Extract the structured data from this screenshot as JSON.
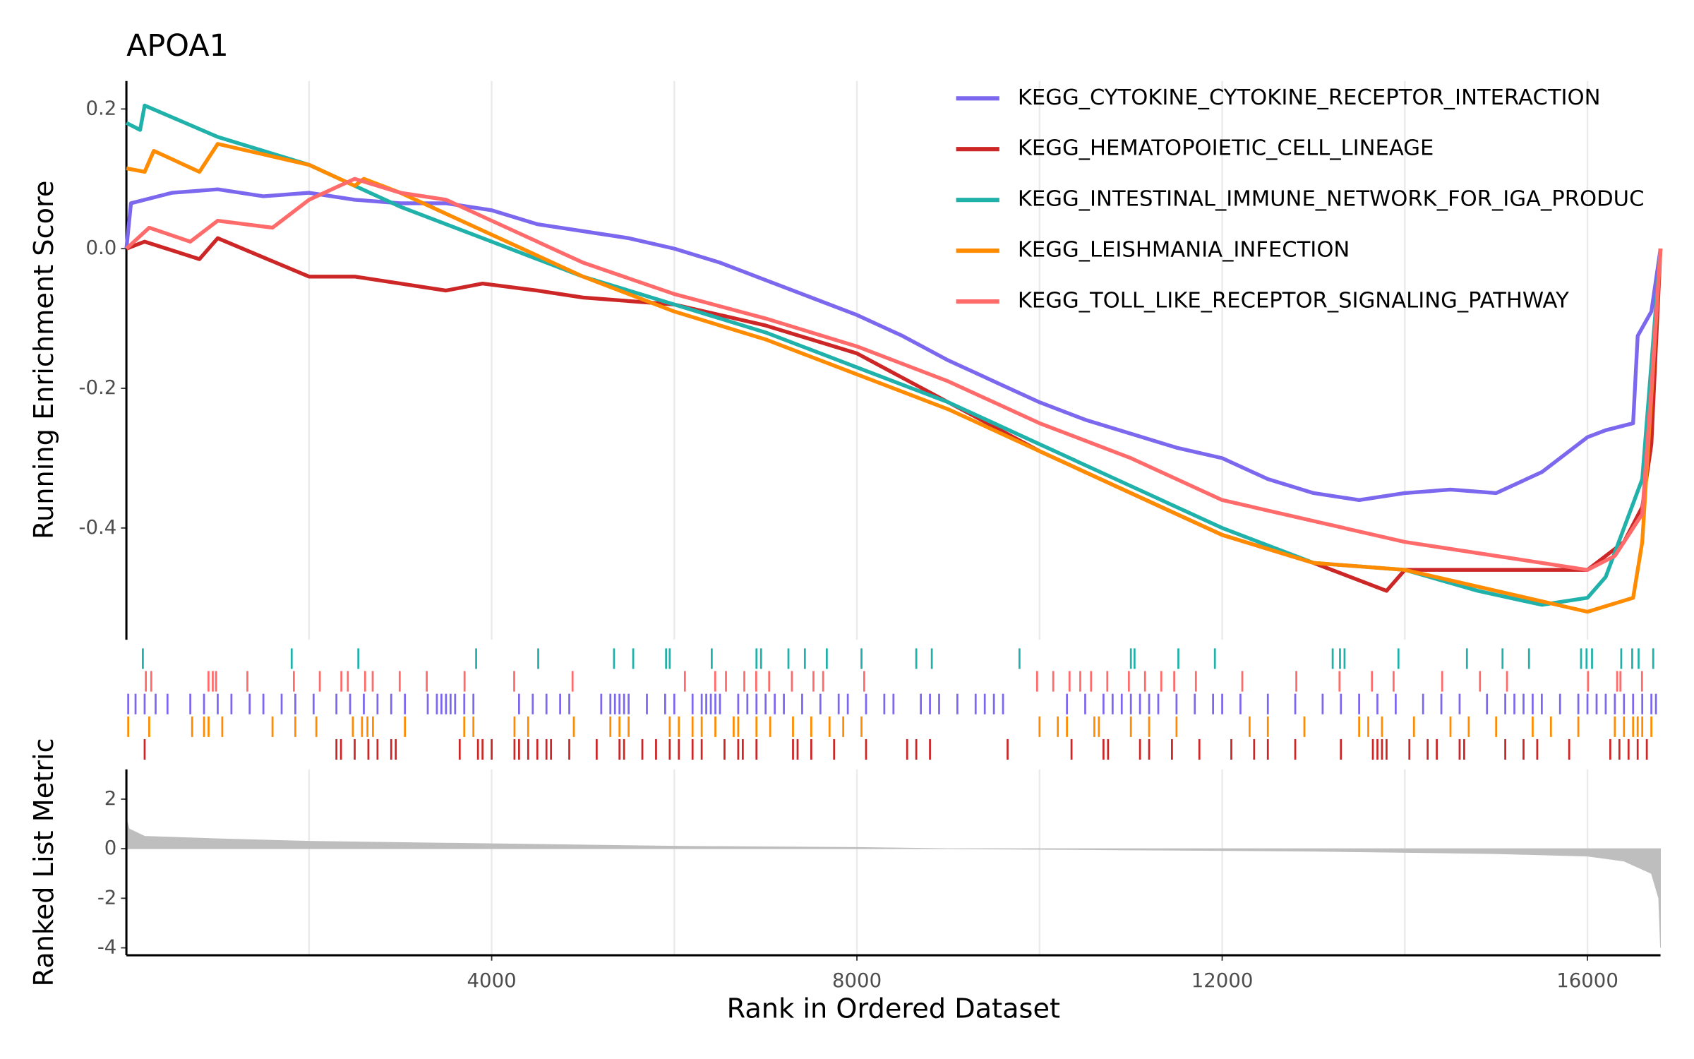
{
  "chart_data": [
    {
      "type": "line",
      "title": "APOA1",
      "ylabel": "Running Enrichment Score",
      "xlim": [
        0,
        16800
      ],
      "ylim": [
        -0.56,
        0.24
      ],
      "yticks": [
        0.2,
        {
          "value": 0,
          "label": "0.0"
        },
        -0.2,
        -0.4
      ],
      "xgrid": [
        2000,
        4000,
        6000,
        8000,
        10000,
        12000,
        14000,
        16000
      ],
      "series": [
        {
          "name": "KEGG_CYTOKINE_CYTOKINE_RECEPTOR_INTERACTION",
          "color": "#7b68ee",
          "x": [
            0,
            50,
            500,
            1000,
            1500,
            2000,
            2500,
            3000,
            3500,
            4000,
            4500,
            5000,
            5500,
            6000,
            6500,
            7000,
            7500,
            8000,
            8500,
            9000,
            9500,
            10000,
            10500,
            11000,
            11500,
            12000,
            12500,
            13000,
            13500,
            14000,
            14500,
            15000,
            15500,
            16000,
            16200,
            16500,
            16550,
            16700,
            16800
          ],
          "values": [
            0,
            0.065,
            0.08,
            0.085,
            0.075,
            0.08,
            0.07,
            0.065,
            0.065,
            0.055,
            0.035,
            0.025,
            0.015,
            0,
            -0.02,
            -0.045,
            -0.07,
            -0.095,
            -0.125,
            -0.16,
            -0.19,
            -0.22,
            -0.245,
            -0.265,
            -0.285,
            -0.3,
            -0.33,
            -0.35,
            -0.36,
            -0.35,
            -0.345,
            -0.35,
            -0.32,
            -0.27,
            -0.26,
            -0.25,
            -0.125,
            -0.09,
            0
          ],
          "hits": [
            20,
            100,
            200,
            320,
            450,
            700,
            850,
            1000,
            1150,
            1350,
            1500,
            1700,
            1850,
            2050,
            2300,
            2450,
            2600,
            2750,
            2900,
            3050,
            3300,
            3400,
            3450,
            3500,
            3550,
            3600,
            3700,
            3800,
            4300,
            4450,
            4600,
            4750,
            4850,
            5200,
            5300,
            5350,
            5400,
            5450,
            5500,
            5700,
            5900,
            6000,
            6200,
            6300,
            6350,
            6400,
            6450,
            6500,
            6700,
            6800,
            6900,
            7000,
            7100,
            7200,
            7400,
            7600,
            7800,
            7900,
            8100,
            8300,
            8400,
            8700,
            8800,
            8900,
            9100,
            9300,
            9400,
            9500,
            9600,
            10300,
            10500,
            10700,
            10800,
            10900,
            11000,
            11100,
            11200,
            11300,
            11500,
            11700,
            11900,
            12000,
            12200,
            12500,
            12800,
            13100,
            13300,
            13500,
            13700,
            13900,
            14200,
            14400,
            14600,
            14900,
            15100,
            15200,
            15300,
            15400,
            15500,
            15700,
            15900,
            16000,
            16100,
            16200,
            16300,
            16400,
            16500,
            16600,
            16700,
            16750
          ]
        },
        {
          "name": "KEGG_HEMATOPOIETIC_CELL_LINEAGE",
          "color": "#cd2626",
          "x": [
            0,
            200,
            800,
            1000,
            2000,
            2500,
            3000,
            3500,
            3900,
            4500,
            5000,
            6000,
            7000,
            8000,
            9000,
            10000,
            11000,
            12000,
            13000,
            13800,
            14000,
            15000,
            16000,
            16400,
            16600,
            16700,
            16800
          ],
          "values": [
            0,
            0.01,
            -0.015,
            0.015,
            -0.04,
            -0.04,
            -0.05,
            -0.06,
            -0.05,
            -0.06,
            -0.07,
            -0.08,
            -0.11,
            -0.15,
            -0.22,
            -0.29,
            -0.35,
            -0.41,
            -0.45,
            -0.49,
            -0.46,
            -0.46,
            -0.46,
            -0.42,
            -0.37,
            -0.28,
            0
          ],
          "hits": [
            200,
            2300,
            2350,
            2500,
            2650,
            2750,
            2900,
            2950,
            3650,
            3850,
            3900,
            4000,
            4250,
            4300,
            4400,
            4500,
            4600,
            4650,
            4850,
            5150,
            5400,
            5450,
            5650,
            5800,
            5950,
            6050,
            6200,
            6300,
            6550,
            6700,
            6750,
            6900,
            7300,
            7350,
            7500,
            7750,
            8100,
            8550,
            8650,
            8800,
            9650,
            10350,
            10700,
            10750,
            11100,
            11200,
            11450,
            11750,
            12100,
            12350,
            12500,
            12800,
            13300,
            13650,
            13700,
            13750,
            13800,
            14050,
            14250,
            14350,
            14600,
            14650,
            15100,
            15300,
            15450,
            15800,
            16250,
            16350,
            16450,
            16550,
            16650
          ]
        },
        {
          "name": "KEGG_INTESTINAL_IMMUNE_NETWORK_FOR_IGA_PRODUC",
          "color": "#20b2aa",
          "x": [
            0,
            150,
            200,
            1000,
            2000,
            3000,
            4000,
            5000,
            6000,
            7000,
            8000,
            9000,
            10000,
            11000,
            12000,
            13000,
            14000,
            14800,
            15500,
            16000,
            16200,
            16400,
            16600,
            16800
          ],
          "values": [
            0.18,
            0.17,
            0.205,
            0.16,
            0.12,
            0.06,
            0.01,
            -0.04,
            -0.08,
            -0.12,
            -0.17,
            -0.22,
            -0.28,
            -0.34,
            -0.4,
            -0.45,
            -0.46,
            -0.49,
            -0.51,
            -0.5,
            -0.47,
            -0.4,
            -0.33,
            0
          ],
          "hits": [
            180,
            1810,
            2540,
            3830,
            4510,
            5340,
            5550,
            5910,
            5950,
            6410,
            6900,
            6950,
            7250,
            7430,
            7670,
            8050,
            8650,
            8820,
            9780,
            11000,
            11040,
            11520,
            11920,
            13210,
            13290,
            13340,
            13930,
            14680,
            15070,
            15360,
            15930,
            15990,
            16050,
            16370,
            16490,
            16560,
            16720
          ]
        },
        {
          "name": "KEGG_LEISHMANIA_INFECTION",
          "color": "#ff8c00",
          "x": [
            0,
            200,
            300,
            800,
            1000,
            2000,
            2500,
            2600,
            3000,
            4000,
            5000,
            6000,
            7000,
            8000,
            9000,
            10000,
            11000,
            12000,
            13000,
            14000,
            15000,
            16000,
            16500,
            16600,
            16800
          ],
          "values": [
            0.115,
            0.11,
            0.14,
            0.11,
            0.15,
            0.12,
            0.09,
            0.1,
            0.08,
            0.02,
            -0.04,
            -0.09,
            -0.13,
            -0.18,
            -0.23,
            -0.29,
            -0.35,
            -0.41,
            -0.45,
            -0.46,
            -0.49,
            -0.52,
            -0.5,
            -0.42,
            0
          ],
          "hits": [
            20,
            250,
            720,
            850,
            900,
            1050,
            1600,
            1850,
            2080,
            2480,
            2580,
            2640,
            2700,
            3050,
            3700,
            3800,
            4250,
            4400,
            4900,
            5300,
            5400,
            5500,
            5950,
            6050,
            6200,
            6300,
            6450,
            6650,
            6700,
            6900,
            7050,
            7300,
            7500,
            7700,
            7850,
            8050,
            10000,
            10200,
            10300,
            10600,
            10650,
            11000,
            11200,
            11500,
            12300,
            12500,
            12900,
            13500,
            13600,
            13750,
            14100,
            14500,
            14700,
            15000,
            15400,
            15600,
            15900,
            16300,
            16400,
            16500,
            16550,
            16600,
            16700
          ]
        },
        {
          "name": "KEGG_TOLL_LIKE_RECEPTOR_SIGNALING_PATHWAY",
          "color": "#ff6a6a",
          "x": [
            0,
            250,
            700,
            1000,
            1600,
            2000,
            2500,
            3000,
            3500,
            4000,
            5000,
            6000,
            7000,
            8000,
            9000,
            10000,
            11000,
            12000,
            13000,
            14000,
            15000,
            16000,
            16300,
            16600,
            16700,
            16800
          ],
          "values": [
            0,
            0.03,
            0.01,
            0.04,
            0.03,
            0.07,
            0.1,
            0.08,
            0.07,
            0.04,
            -0.02,
            -0.065,
            -0.1,
            -0.14,
            -0.19,
            -0.25,
            -0.3,
            -0.36,
            -0.39,
            -0.42,
            -0.44,
            -0.46,
            -0.44,
            -0.38,
            -0.2,
            0
          ],
          "hits": [
            213,
            272,
            899,
            946,
            982,
            1325,
            1834,
            2118,
            2354,
            2425,
            2614,
            2697,
            2993,
            3289,
            3703,
            4247,
            4886,
            6116,
            6448,
            6566,
            6767,
            6897,
            7039,
            7288,
            7524,
            7630,
            8080,
            9973,
            10150,
            10328,
            10446,
            10564,
            10742,
            10978,
            11155,
            11333,
            11475,
            11712,
            12220,
            12812,
            13285,
            13640,
            13877,
            14409,
            14823,
            15119,
            16006,
            16325,
            16361,
            16597
          ]
        }
      ]
    },
    {
      "type": "area",
      "ylabel": "Ranked List Metric",
      "xlabel": "Rank in Ordered Dataset",
      "color": "#bebebe",
      "xlim": [
        0,
        16800
      ],
      "ylim": [
        -4.3,
        3.2
      ],
      "xticks": [
        4000,
        8000,
        12000,
        16000
      ],
      "yticks": [
        2,
        0,
        -2,
        -4
      ],
      "xgrid": [
        2000,
        4000,
        6000,
        8000,
        10000,
        12000,
        14000,
        16000
      ],
      "x": [
        0,
        30,
        200,
        1000,
        2000,
        4000,
        6000,
        8000,
        9000,
        11000,
        13000,
        15000,
        16000,
        16400,
        16700,
        16780,
        16800
      ],
      "values": [
        1.2,
        0.8,
        0.5,
        0.4,
        0.3,
        0.2,
        0.1,
        0.05,
        0,
        -0.05,
        -0.1,
        -0.2,
        -0.3,
        -0.5,
        -1,
        -2,
        -4
      ]
    }
  ]
}
